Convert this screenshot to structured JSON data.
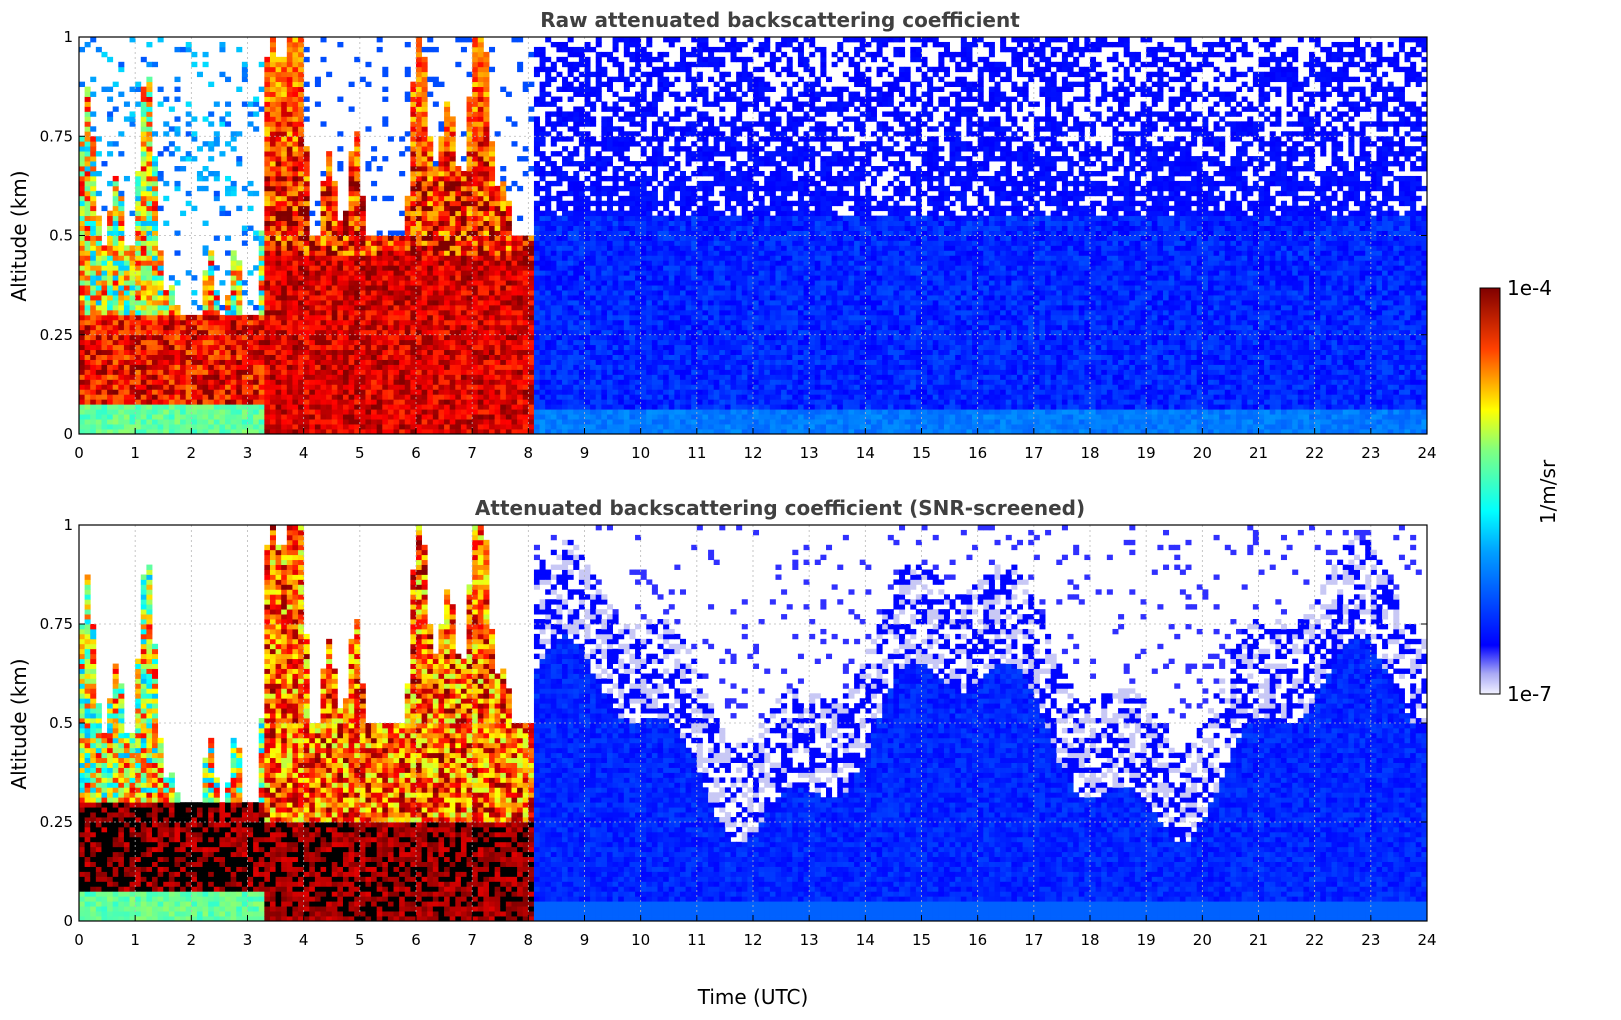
{
  "chart_data": [
    {
      "type": "heatmap",
      "title": "Raw attenuated backscattering coefficient",
      "xlabel": "",
      "ylabel": "Altitude (km)",
      "xlim": [
        0,
        24
      ],
      "ylim": [
        0,
        1
      ],
      "x_ticks": [
        "0",
        "1",
        "2",
        "3",
        "4",
        "5",
        "6",
        "7",
        "8",
        "9",
        "10",
        "11",
        "12",
        "13",
        "14",
        "15",
        "16",
        "17",
        "18",
        "19",
        "20",
        "21",
        "22",
        "23",
        "24"
      ],
      "y_ticks": [
        {
          "value": 0,
          "label": "0"
        },
        {
          "value": 0.25,
          "label": "0.25"
        },
        {
          "value": 0.5,
          "label": "0.5"
        },
        {
          "value": 0.75,
          "label": "0.75"
        },
        {
          "value": 1,
          "label": "1"
        }
      ],
      "grid": true,
      "colorscale": "jet",
      "regime_boundaries_utc": [
        3.3,
        8.1
      ],
      "cloud_layer_altitude_km": [
        0.1,
        0.3
      ],
      "noise_floor_altitude_km": 0.55
    },
    {
      "type": "heatmap",
      "title": "Attenuated backscattering coefficient (SNR-screened)",
      "xlabel": "Time (UTC)",
      "ylabel": "Altitude (km)",
      "xlim": [
        0,
        24
      ],
      "ylim": [
        0,
        1
      ],
      "x_ticks": [
        "0",
        "1",
        "2",
        "3",
        "4",
        "5",
        "6",
        "7",
        "8",
        "9",
        "10",
        "11",
        "12",
        "13",
        "14",
        "15",
        "16",
        "17",
        "18",
        "19",
        "20",
        "21",
        "22",
        "23",
        "24"
      ],
      "y_ticks": [
        {
          "value": 0,
          "label": "0"
        },
        {
          "value": 0.25,
          "label": "0.25"
        },
        {
          "value": 0.5,
          "label": "0.5"
        },
        {
          "value": 0.75,
          "label": "0.75"
        },
        {
          "value": 1,
          "label": "1"
        }
      ],
      "grid": true,
      "colorscale": "jet",
      "regime_boundaries_utc": [
        3.3,
        8.1
      ],
      "screened_top_altitude_km": [
        0.5,
        0.8
      ]
    }
  ],
  "colorbar": {
    "label": "1/m/sr",
    "max_label": "1e-4",
    "min_label": "1e-7",
    "max_value": 0.0001,
    "min_value": 1e-07,
    "scale": "log",
    "placement": "right"
  }
}
